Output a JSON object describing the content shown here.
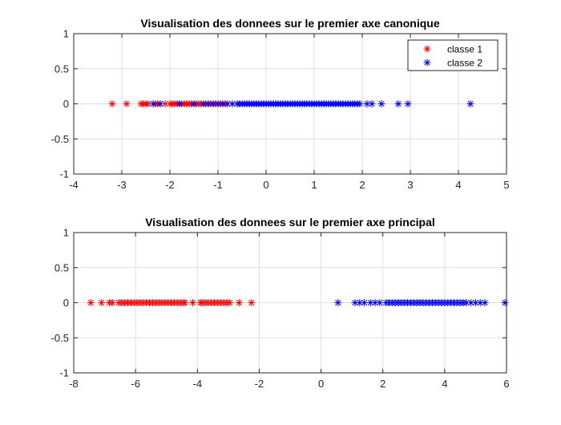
{
  "chart_data": [
    {
      "type": "scatter",
      "title": "Visualisation des donnees sur le premier axe canonique",
      "xlabel": "",
      "ylabel": "",
      "xlim": [
        -4,
        5
      ],
      "ylim": [
        -1,
        1
      ],
      "xticks": [
        "-4",
        "-3",
        "-2",
        "-1",
        "0",
        "1",
        "2",
        "3",
        "4",
        "5"
      ],
      "yticks": [
        "1",
        "0.5",
        "0",
        "-0.5",
        "-1"
      ],
      "grid": true,
      "legend_position": "top-right",
      "marker": "*",
      "series": [
        {
          "name": "classe 1",
          "color": "#ff0000",
          "x": [
            -3.2,
            -2.9,
            -2.6,
            -2.55,
            -2.5,
            -2.45,
            -2.3,
            -2.25,
            -2.2,
            -2.1,
            -2.0,
            -1.95,
            -1.9,
            -1.85,
            -1.8,
            -1.75,
            -1.7,
            -1.65,
            -1.6,
            -1.55,
            -1.5,
            -1.45,
            -1.4,
            -1.35,
            -1.3,
            -1.25,
            -1.2,
            -1.15,
            -1.1,
            -1.05,
            -1.0,
            -0.95,
            -0.9,
            -0.85,
            -0.8,
            -0.7,
            -0.6,
            -0.5,
            -0.4,
            -0.3,
            -0.2,
            -0.1,
            0.0,
            0.1,
            0.2,
            0.3,
            0.5,
            0.7,
            0.8,
            1.0,
            1.2,
            1.4,
            1.5
          ],
          "y": [
            0,
            0,
            0,
            0,
            0,
            0,
            0,
            0,
            0,
            0,
            0,
            0,
            0,
            0,
            0,
            0,
            0,
            0,
            0,
            0,
            0,
            0,
            0,
            0,
            0,
            0,
            0,
            0,
            0,
            0,
            0,
            0,
            0,
            0,
            0,
            0,
            0,
            0,
            0,
            0,
            0,
            0,
            0,
            0,
            0,
            0,
            0,
            0,
            0,
            0,
            0,
            0,
            0
          ]
        },
        {
          "name": "classe 2",
          "color": "#0000ff",
          "x": [
            -2.35,
            -2.2,
            -1.8,
            -1.5,
            -1.3,
            -1.2,
            -1.1,
            -1.0,
            -0.9,
            -0.8,
            -0.7,
            -0.6,
            -0.55,
            -0.5,
            -0.45,
            -0.4,
            -0.35,
            -0.3,
            -0.25,
            -0.2,
            -0.15,
            -0.1,
            -0.05,
            0.0,
            0.05,
            0.1,
            0.15,
            0.2,
            0.25,
            0.3,
            0.35,
            0.4,
            0.45,
            0.5,
            0.55,
            0.6,
            0.65,
            0.7,
            0.75,
            0.8,
            0.85,
            0.9,
            0.95,
            1.0,
            1.05,
            1.1,
            1.15,
            1.2,
            1.25,
            1.3,
            1.35,
            1.4,
            1.45,
            1.5,
            1.55,
            1.6,
            1.65,
            1.7,
            1.75,
            1.8,
            1.85,
            1.9,
            1.95,
            2.1,
            2.2,
            2.4,
            2.75,
            2.95,
            4.25
          ],
          "y": [
            0,
            0,
            0,
            0,
            0,
            0,
            0,
            0,
            0,
            0,
            0,
            0,
            0,
            0,
            0,
            0,
            0,
            0,
            0,
            0,
            0,
            0,
            0,
            0,
            0,
            0,
            0,
            0,
            0,
            0,
            0,
            0,
            0,
            0,
            0,
            0,
            0,
            0,
            0,
            0,
            0,
            0,
            0,
            0,
            0,
            0,
            0,
            0,
            0,
            0,
            0,
            0,
            0,
            0,
            0,
            0,
            0,
            0,
            0,
            0,
            0,
            0,
            0,
            0,
            0,
            0,
            0,
            0,
            0
          ]
        }
      ]
    },
    {
      "type": "scatter",
      "title": "Visualisation des donnees sur le premier axe principal",
      "xlabel": "",
      "ylabel": "",
      "xlim": [
        -8,
        6
      ],
      "ylim": [
        -1,
        1
      ],
      "xticks": [
        "-8",
        "-6",
        "-4",
        "-2",
        "0",
        "2",
        "4",
        "6"
      ],
      "yticks": [
        "1",
        "0.5",
        "0",
        "-0.5",
        "-1"
      ],
      "grid": true,
      "marker": "*",
      "series": [
        {
          "color": "#ff0000",
          "x": [
            -7.45,
            -7.1,
            -6.85,
            -6.75,
            -6.55,
            -6.45,
            -6.35,
            -6.25,
            -6.15,
            -6.05,
            -5.95,
            -5.85,
            -5.75,
            -5.65,
            -5.55,
            -5.45,
            -5.35,
            -5.25,
            -5.15,
            -5.05,
            -4.95,
            -4.85,
            -4.75,
            -4.65,
            -4.55,
            -4.45,
            -4.4,
            -4.15,
            -3.9,
            -3.85,
            -3.75,
            -3.65,
            -3.55,
            -3.45,
            -3.35,
            -3.25,
            -3.15,
            -3.05,
            -2.95,
            -2.65,
            -2.25
          ],
          "y": [
            0,
            0,
            0,
            0,
            0,
            0,
            0,
            0,
            0,
            0,
            0,
            0,
            0,
            0,
            0,
            0,
            0,
            0,
            0,
            0,
            0,
            0,
            0,
            0,
            0,
            0,
            0,
            0,
            0,
            0,
            0,
            0,
            0,
            0,
            0,
            0,
            0,
            0,
            0,
            0,
            0
          ]
        },
        {
          "color": "#0000ff",
          "x": [
            0.55,
            1.1,
            1.25,
            1.4,
            1.6,
            1.75,
            1.9,
            2.1,
            2.2,
            2.3,
            2.4,
            2.5,
            2.6,
            2.7,
            2.8,
            2.9,
            3.0,
            3.1,
            3.2,
            3.3,
            3.4,
            3.5,
            3.6,
            3.7,
            3.8,
            3.9,
            4.0,
            4.1,
            4.2,
            4.3,
            4.4,
            4.5,
            4.6,
            4.7,
            4.85,
            5.0,
            5.15,
            5.3,
            5.95
          ],
          "y": [
            0,
            0,
            0,
            0,
            0,
            0,
            0,
            0,
            0,
            0,
            0,
            0,
            0,
            0,
            0,
            0,
            0,
            0,
            0,
            0,
            0,
            0,
            0,
            0,
            0,
            0,
            0,
            0,
            0,
            0,
            0,
            0,
            0,
            0,
            0,
            0,
            0,
            0,
            0
          ]
        }
      ]
    }
  ]
}
